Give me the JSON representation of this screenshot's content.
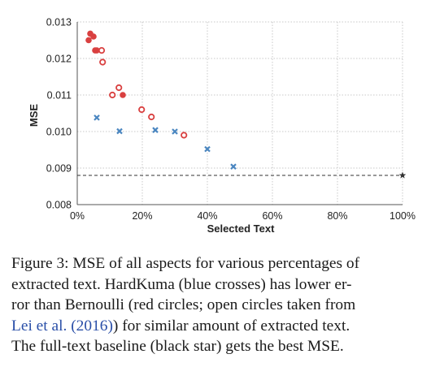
{
  "chart_data": {
    "type": "scatter",
    "xlabel": "Selected Text",
    "ylabel": "MSE",
    "xlim": [
      0,
      1.0
    ],
    "ylim": [
      0.008,
      0.013
    ],
    "grid": true,
    "x_ticks": [
      0,
      0.2,
      0.4,
      0.6,
      0.8,
      1.0
    ],
    "x_tick_labels": [
      "0%",
      "20%",
      "40%",
      "60%",
      "80%",
      "100%"
    ],
    "y_ticks": [
      0.008,
      0.009,
      0.01,
      0.011,
      0.012,
      0.013
    ],
    "y_tick_labels": [
      "0.008",
      "0.009",
      "0.010",
      "0.011",
      "0.012",
      "0.013"
    ],
    "colors": {
      "hardkuma": "#4a86c0",
      "bernoulli": "#d94040",
      "baseline": "#333333",
      "grid": "#c8c8c8"
    },
    "series": [
      {
        "marker": "cross",
        "color": "#4a86c0",
        "points": [
          {
            "x": 0.06,
            "y": 0.01038
          },
          {
            "x": 0.13,
            "y": 0.01001
          },
          {
            "x": 0.24,
            "y": 0.01004
          },
          {
            "x": 0.3,
            "y": 0.01
          },
          {
            "x": 0.4,
            "y": 0.00952
          },
          {
            "x": 0.48,
            "y": 0.00904
          }
        ]
      },
      {
        "marker": "filled-circle",
        "color": "#d94040",
        "points": [
          {
            "x": 0.035,
            "y": 0.0125
          },
          {
            "x": 0.04,
            "y": 0.01268
          },
          {
            "x": 0.05,
            "y": 0.0126
          },
          {
            "x": 0.055,
            "y": 0.01222
          },
          {
            "x": 0.06,
            "y": 0.01222
          },
          {
            "x": 0.14,
            "y": 0.011
          }
        ]
      },
      {
        "marker": "open-circle",
        "color": "#d94040",
        "points": [
          {
            "x": 0.075,
            "y": 0.01222
          },
          {
            "x": 0.078,
            "y": 0.0119
          },
          {
            "x": 0.108,
            "y": 0.011
          },
          {
            "x": 0.128,
            "y": 0.0112
          },
          {
            "x": 0.198,
            "y": 0.0106
          },
          {
            "x": 0.228,
            "y": 0.0104
          },
          {
            "x": 0.328,
            "y": 0.0099
          }
        ]
      },
      {
        "marker": "star",
        "color": "#333333",
        "points": [
          {
            "x": 1.0,
            "y": 0.0088
          }
        ]
      }
    ],
    "baseline_line": {
      "y": 0.0088,
      "x_from": 0.0,
      "x_to": 1.0,
      "style": "dashed"
    }
  },
  "caption": {
    "lines": [
      {
        "text": "Figure 3: MSE of all aspects for various percentages of"
      },
      {
        "text": "extracted text.  HardKuma (blue crosses) has lower er-"
      },
      {
        "text": "ror than Bernoulli (red circles; open circles taken from"
      },
      {
        "pre": "",
        "cite": "Lei et al. (2016)",
        "post": ") for similar amount of extracted text."
      },
      {
        "text": "The full-text baseline (black star) gets the best MSE."
      }
    ]
  }
}
